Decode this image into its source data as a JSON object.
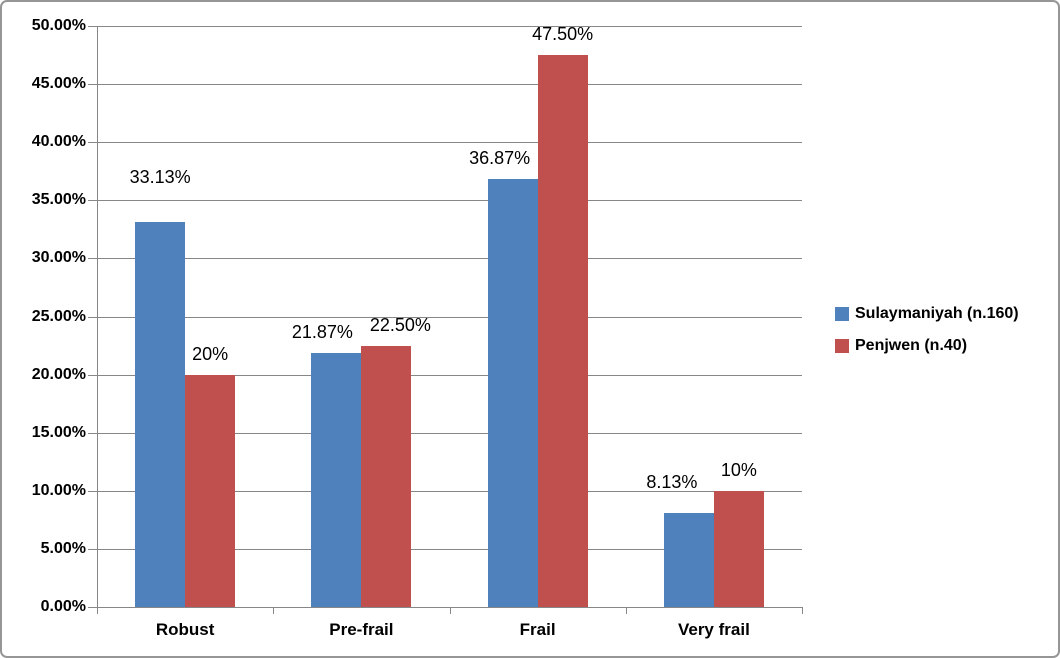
{
  "chart_data": {
    "type": "bar",
    "title": "",
    "xlabel": "",
    "ylabel": "",
    "categories": [
      "Robust",
      "Pre-frail",
      "Frail",
      "Very frail"
    ],
    "series": [
      {
        "name": "Sulaymaniyah (n.160)",
        "color": "#4F81BD",
        "values": [
          33.13,
          21.87,
          36.87,
          8.13
        ],
        "labels": [
          "33.13%",
          "21.87%",
          "36.87%",
          "8.13%"
        ],
        "label_dx": [
          0,
          -14,
          -13,
          -17
        ],
        "label_dy": [
          -24,
          0,
          0,
          -10
        ]
      },
      {
        "name": "Penjwen (n.40)",
        "color": "#C0504D",
        "values": [
          20,
          22.5,
          47.5,
          10
        ],
        "labels": [
          "20%",
          "22.50%",
          "47.50%",
          "10%"
        ],
        "label_dx": [
          0,
          14,
          0,
          0
        ],
        "label_dy": [
          0,
          0,
          0,
          0
        ]
      }
    ],
    "ylim": [
      0,
      50
    ],
    "ytick_step": 5,
    "ytick_labels": [
      "0.00%",
      "5.00%",
      "10.00%",
      "15.00%",
      "20.00%",
      "25.00%",
      "30.00%",
      "35.00%",
      "40.00%",
      "45.00%",
      "50.00%"
    ],
    "grid": true,
    "legend_position": "right"
  },
  "colors": {
    "bar_blue": "#4F81BD",
    "bar_red": "#C0504D",
    "gridline": "#878787",
    "axis": "#878787",
    "frame_border": "#969696",
    "text": "#000000",
    "background": "#FFFFFF"
  }
}
